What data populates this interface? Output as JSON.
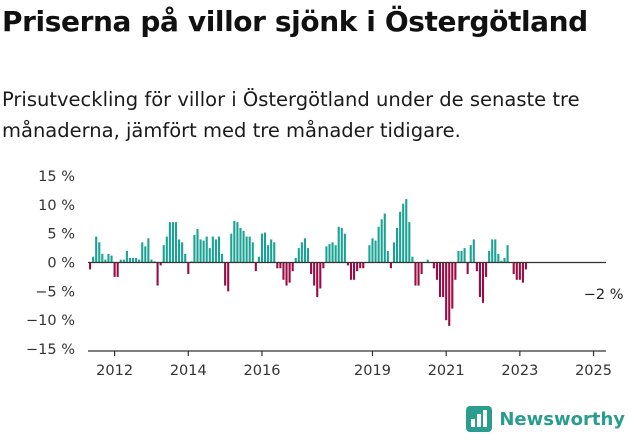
{
  "title": "Priserna på villor sjönk i Östergötland",
  "subtitle": "Prisutveckling för villor i Östergötland under de senaste tre månaderna, jämfört med tre månader tidigare.",
  "brand": "Newsworthy",
  "colors": {
    "positive": "#1aa394",
    "negative": "#9b0c45",
    "axis": "#333333",
    "text": "#333333"
  },
  "chart_data": {
    "type": "bar",
    "ylim": [
      -15,
      15
    ],
    "y_ticks": [
      15,
      10,
      5,
      0,
      -5,
      -10,
      -15
    ],
    "y_tick_labels": [
      "15 %",
      "10 %",
      "5 %",
      "0 %",
      "−5 %",
      "−10 %",
      "−15 %"
    ],
    "x_tick_labels": [
      {
        "label": "2012",
        "index": 8
      },
      {
        "label": "2014",
        "index": 32
      },
      {
        "label": "2016",
        "index": 56
      },
      {
        "label": "2019",
        "index": 92
      },
      {
        "label": "2021",
        "index": 116
      },
      {
        "label": "2023",
        "index": 140
      },
      {
        "label": "2025",
        "index": 164
      }
    ],
    "annotation": {
      "text": "−2 %",
      "index": 166
    },
    "values": [
      -1.2,
      1,
      4.5,
      3.5,
      1.5,
      0.5,
      1.5,
      1.2,
      -2.5,
      -2.5,
      0.5,
      0.5,
      2,
      0.8,
      0.8,
      0.8,
      0.5,
      3.5,
      2.8,
      4.2,
      0.5,
      0.2,
      -4,
      -0.5,
      3,
      4.5,
      7,
      7,
      7,
      4,
      3.5,
      1.5,
      -2,
      0.2,
      4.8,
      5.8,
      4,
      3.8,
      4.5,
      2.5,
      4.5,
      4,
      4.5,
      1.5,
      -4,
      -5,
      5,
      7.2,
      7,
      6,
      5.5,
      4.5,
      4.5,
      3.5,
      -1.5,
      1,
      5,
      5.2,
      3,
      4,
      3.5,
      -1,
      -1,
      -3,
      -4,
      -3.5,
      -1.5,
      0.8,
      2.5,
      3.5,
      4.2,
      2.5,
      -2,
      -4,
      -6,
      -4.5,
      -1,
      2.8,
      3.2,
      3.5,
      3,
      6.2,
      6,
      5,
      -0.5,
      -3,
      -3,
      -1.5,
      -1,
      -1,
      0,
      3,
      4.2,
      3.8,
      6.2,
      7.5,
      8.5,
      2,
      -1,
      3.5,
      6,
      8.8,
      10.2,
      11,
      7,
      1,
      -4,
      -4,
      -2,
      0,
      0.5,
      0,
      -1,
      -3,
      -6,
      -6,
      -10,
      -11,
      -8,
      -3,
      2,
      2,
      2.5,
      -2,
      3,
      4,
      -1.5,
      -6,
      -7,
      -2.5,
      2,
      4,
      4,
      1.5,
      0.3,
      0.8,
      3,
      0,
      -2,
      -3,
      -3,
      -3.5,
      -1.2
    ]
  }
}
